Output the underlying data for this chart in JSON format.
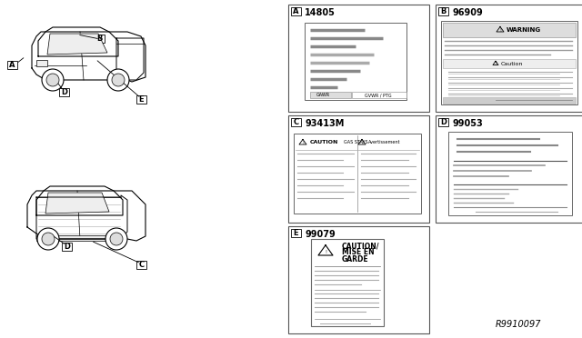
{
  "bg_color": "#ffffff",
  "border_color": "#000000",
  "text_color": "#000000",
  "gray_color": "#888888",
  "light_gray": "#bbbbbb",
  "diagram_ref": "R9910097",
  "left_panel": {
    "truck_front_labels": [
      "B",
      "A",
      "E",
      "D"
    ],
    "truck_rear_labels": [
      "D",
      "C"
    ]
  },
  "label_panels": [
    {
      "id": "A",
      "part": "14805",
      "col": 0,
      "row": 0
    },
    {
      "id": "B",
      "part": "96909",
      "col": 1,
      "row": 0
    },
    {
      "id": "C",
      "part": "93413M",
      "col": 0,
      "row": 1
    },
    {
      "id": "D",
      "part": "99053",
      "col": 1,
      "row": 1
    },
    {
      "id": "E",
      "part": "99079",
      "col": 0,
      "row": 2
    }
  ]
}
